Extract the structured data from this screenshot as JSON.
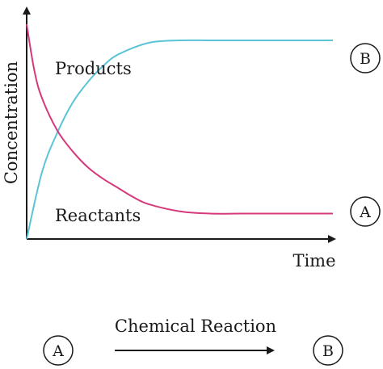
{
  "chart_data": {
    "type": "line",
    "title": "",
    "xlabel": "Time",
    "ylabel": "Concentration",
    "x_ticks": [],
    "y_ticks": [],
    "grid": false,
    "xlim": [
      0,
      10
    ],
    "ylim": [
      0,
      10
    ],
    "series": [
      {
        "name": "Products",
        "color": "#5bc4d6",
        "end_marker": "B",
        "x": [
          0,
          0.5,
          1,
          1.5,
          2,
          2.5,
          3,
          4,
          5,
          6,
          7,
          8,
          9,
          10
        ],
        "y": [
          0,
          2.9,
          4.6,
          5.9,
          6.8,
          7.5,
          8.0,
          8.5,
          8.6,
          8.6,
          8.6,
          8.6,
          8.6,
          8.6
        ]
      },
      {
        "name": "Reactants",
        "color": "#d6397b",
        "end_marker": "A",
        "x": [
          0,
          0.25,
          0.5,
          1,
          1.5,
          2,
          2.5,
          3,
          3.5,
          4,
          5,
          6,
          7,
          8,
          9,
          10
        ],
        "y": [
          9.3,
          7.3,
          6.1,
          4.7,
          3.8,
          3.1,
          2.6,
          2.2,
          1.8,
          1.5,
          1.2,
          1.1,
          1.1,
          1.1,
          1.1,
          1.1
        ]
      }
    ],
    "annotations": [
      "Products",
      "Reactants"
    ]
  },
  "reaction": {
    "label": "Chemical Reaction",
    "from": "A",
    "to": "B"
  }
}
